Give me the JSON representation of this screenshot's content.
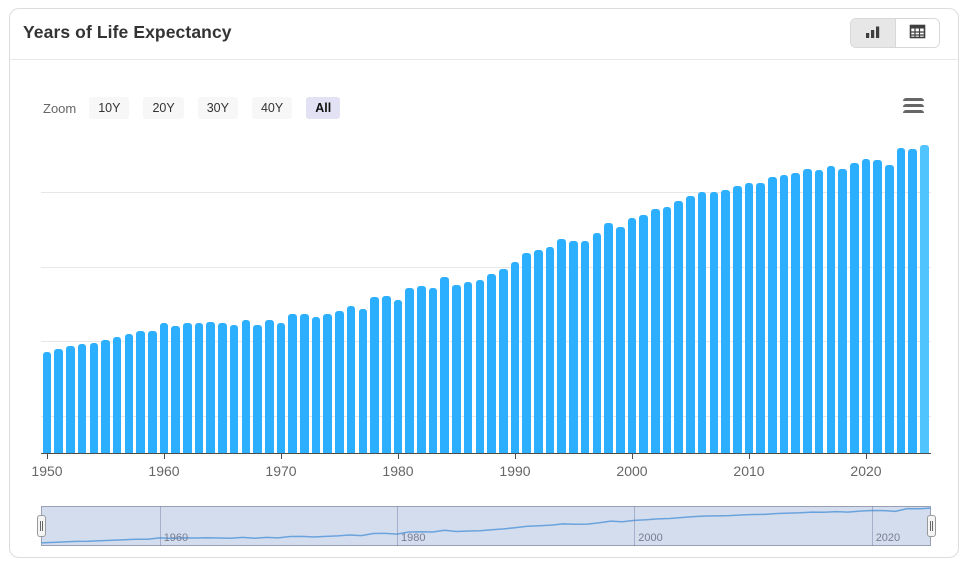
{
  "header": {
    "title": "Years of Life Expectancy",
    "view_buttons": [
      {
        "label": "chart view",
        "icon": "bar-chart-icon",
        "active": true
      },
      {
        "label": "table view",
        "icon": "table-icon",
        "active": false
      }
    ]
  },
  "range_selector": {
    "zoom_label": "Zoom",
    "buttons": [
      {
        "label": "10Y",
        "selected": false
      },
      {
        "label": "20Y",
        "selected": false
      },
      {
        "label": "30Y",
        "selected": false
      },
      {
        "label": "40Y",
        "selected": false
      },
      {
        "label": "All",
        "selected": true
      }
    ],
    "context_menu_icon": "hamburger-menu-icon"
  },
  "chart_data": {
    "type": "bar",
    "title": "Years of Life Expectancy",
    "x": [
      1950,
      1951,
      1952,
      1953,
      1954,
      1955,
      1956,
      1957,
      1958,
      1959,
      1960,
      1961,
      1962,
      1963,
      1964,
      1965,
      1966,
      1967,
      1968,
      1969,
      1970,
      1971,
      1972,
      1973,
      1974,
      1975,
      1976,
      1977,
      1978,
      1979,
      1980,
      1981,
      1982,
      1983,
      1984,
      1985,
      1986,
      1987,
      1988,
      1989,
      1990,
      1991,
      1992,
      1993,
      1994,
      1995,
      1996,
      1997,
      1998,
      1999,
      2000,
      2001,
      2002,
      2003,
      2004,
      2005,
      2006,
      2007,
      2008,
      2009,
      2010,
      2011,
      2012,
      2013,
      2014,
      2015,
      2016,
      2017,
      2018,
      2019,
      2020,
      2021,
      2022,
      2023,
      2024,
      2025
    ],
    "values": [
      48.5,
      48.9,
      49.3,
      49.7,
      49.8,
      50.2,
      50.6,
      51.0,
      51.4,
      51.4,
      52.5,
      52.1,
      52.5,
      52.4,
      52.6,
      52.4,
      52.2,
      52.9,
      52.2,
      52.9,
      52.5,
      53.6,
      53.7,
      53.2,
      53.7,
      54.1,
      54.8,
      54.3,
      56.0,
      56.1,
      55.5,
      57.2,
      57.4,
      57.2,
      58.6,
      57.6,
      58.0,
      58.2,
      59.0,
      59.7,
      60.7,
      61.8,
      62.2,
      62.7,
      63.7,
      63.4,
      63.5,
      64.5,
      65.9,
      65.4,
      66.5,
      67.0,
      67.7,
      68.0,
      68.8,
      69.5,
      70.0,
      70.1,
      70.3,
      70.8,
      71.2,
      71.3,
      72.0,
      72.3,
      72.6,
      73.1,
      73.0,
      73.5,
      73.1,
      73.9,
      74.4,
      74.3,
      73.7,
      75.9,
      75.8,
      76.3
    ],
    "xlabel": "",
    "ylabel": "",
    "ylim": [
      35,
      78
    ],
    "y_gridlines": [
      40,
      50,
      60,
      70
    ],
    "x_ticks": [
      1950,
      1960,
      1970,
      1980,
      1990,
      2000,
      2010,
      2020
    ],
    "grid": true,
    "legend": false,
    "bar_color": "#2CAFFE",
    "last_bar_color": "#51C4FE"
  },
  "navigator": {
    "type": "line",
    "range": [
      1950,
      2025
    ],
    "x_labels": [
      "1960",
      "1980",
      "2000",
      "2020"
    ],
    "x_label_years": [
      1960,
      1980,
      2000,
      2020
    ],
    "line_color": "#6aa3dc",
    "mask_color": "rgba(102,133,194,0.28)"
  }
}
